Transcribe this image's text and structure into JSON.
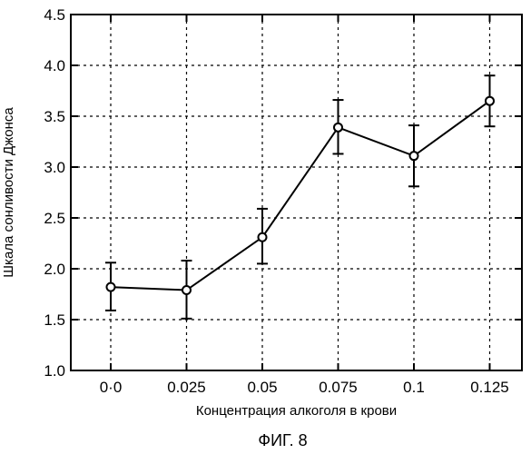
{
  "chart_data": {
    "type": "line",
    "categories": [
      "0·0",
      "0.025",
      "0.05",
      "0.075",
      "0.1",
      "0.125"
    ],
    "series": [
      {
        "values": [
          1.82,
          1.79,
          2.31,
          3.39,
          3.11,
          3.65
        ],
        "error_low": [
          1.59,
          1.51,
          2.05,
          3.13,
          2.81,
          3.4
        ],
        "error_high": [
          2.06,
          2.08,
          2.59,
          3.66,
          3.41,
          3.9
        ]
      }
    ],
    "xlabel": "Концентрация алкоголя  в крови",
    "ylabel": "Шкала сонливости Джонса",
    "ylim": [
      1.0,
      4.5
    ],
    "yticks": [
      "1.0",
      "1.5",
      "2.0",
      "2.5",
      "3.0",
      "3.5",
      "4.0",
      "4.5"
    ],
    "grid": true,
    "line_color": "#000000",
    "marker": "open-circle"
  },
  "caption": "ФИГ. 8"
}
